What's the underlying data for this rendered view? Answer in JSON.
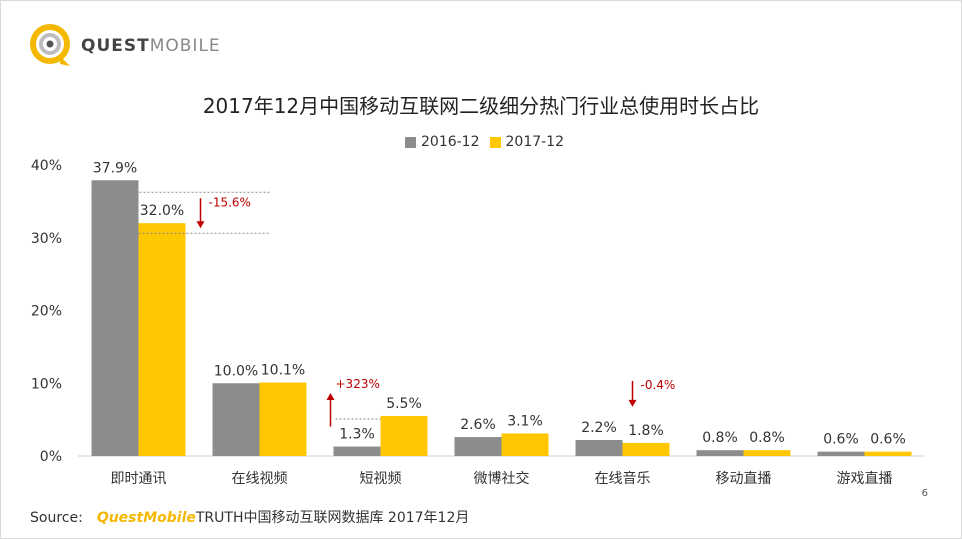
{
  "logo": {
    "bold": "QUEST",
    "light": "MOBILE"
  },
  "title": "2017年12月中国移动互联网二级细分热门行业总使用时长占比",
  "colors": {
    "series1": "#8c8c8c",
    "series2": "#ffc700",
    "down": "#c00000",
    "up": "#c00000",
    "brand": "#f5b800"
  },
  "chart_data": {
    "type": "bar",
    "title": "2017年12月中国移动互联网二级细分热门行业总使用时长占比",
    "categories": [
      "即时通讯",
      "在线视频",
      "短视频",
      "微博社交",
      "在线音乐",
      "移动直播",
      "游戏直播"
    ],
    "series": [
      {
        "name": "2016-12",
        "values": [
          37.9,
          10.0,
          1.3,
          2.6,
          2.2,
          0.8,
          0.6
        ],
        "labels": [
          "37.9%",
          "10.0%",
          "1.3%",
          "2.6%",
          "2.2%",
          "0.8%",
          "0.6%"
        ]
      },
      {
        "name": "2017-12",
        "values": [
          32.0,
          10.1,
          5.5,
          3.1,
          1.8,
          0.8,
          0.6
        ],
        "labels": [
          "32.0%",
          "10.1%",
          "5.5%",
          "3.1%",
          "1.8%",
          "0.8%",
          "0.6%"
        ]
      }
    ],
    "ylim": [
      0,
      40
    ],
    "yticks": [
      "0%",
      "10%",
      "20%",
      "30%",
      "40%"
    ],
    "annotations": [
      {
        "category": "即时通讯",
        "text": "-15.6%",
        "direction": "down"
      },
      {
        "category": "短视频",
        "text": "+323%",
        "direction": "up"
      },
      {
        "category": "在线音乐",
        "text": "-0.4%",
        "direction": "down"
      }
    ],
    "grid": false,
    "legend": "top-center"
  },
  "source": {
    "label": "Source:",
    "brand": "QuestMobile",
    "text": "TRUTH中国移动互联网数据库 2017年12月"
  },
  "page_number": "6"
}
